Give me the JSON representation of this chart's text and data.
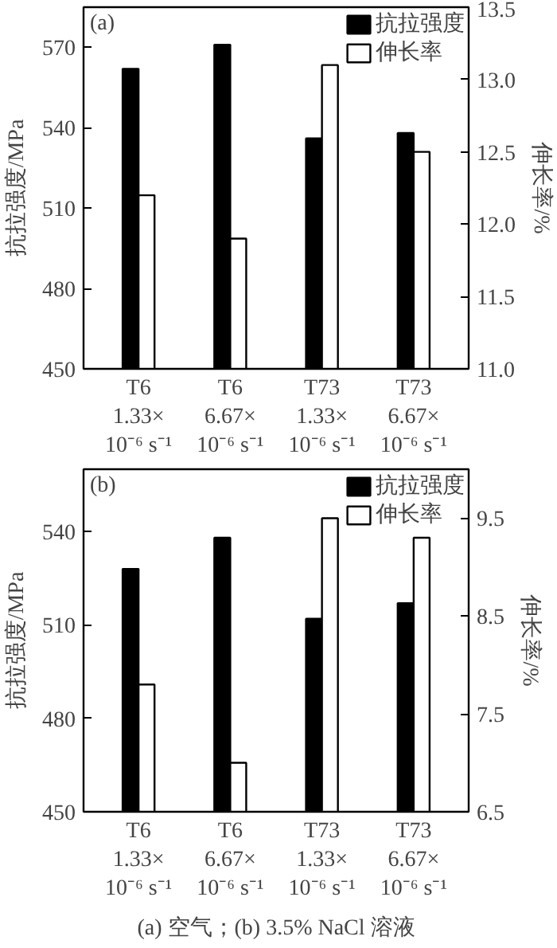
{
  "chart_data": [
    {
      "type": "bar",
      "categories": [
        "T6\n1.33×\n10⁻⁶ s⁻¹",
        "T6\n6.67×\n10⁻⁶ s⁻¹",
        "T73\n1.33×\n10⁻⁶ s⁻¹",
        "T73\n6.67×\n10⁻⁶ s⁻¹"
      ],
      "series": [
        {
          "name": "抗拉强度",
          "color": "#000000",
          "values": [
            562,
            571,
            536,
            538
          ]
        },
        {
          "name": "伸长率",
          "color": "#ffffff",
          "values": [
            12.2,
            11.9,
            13.1,
            12.5
          ],
          "axis": "y2"
        }
      ],
      "ylabel": "抗拉强度/MPa",
      "y2label": "伸长率/%",
      "ylim": [
        450,
        585
      ],
      "yticks": [
        450,
        480,
        510,
        540,
        570
      ],
      "y2lim": [
        11,
        13.5
      ],
      "y2ticks": [
        {
          "value": 11,
          "label": "11.0"
        },
        11.5,
        {
          "value": 12,
          "label": "12.0"
        },
        12.5,
        {
          "value": 13,
          "label": "13.0"
        },
        13.5
      ],
      "legend": "top right",
      "grid": false,
      "annotations": [
        "(a)"
      ]
    },
    {
      "type": "bar",
      "categories": [
        "T6\n1.33×\n10⁻⁶ s⁻¹",
        "T6\n6.67×\n10⁻⁶ s⁻¹",
        "T73\n1.33×\n10⁻⁶ s⁻¹",
        "T73\n6.67×\n10⁻⁶ s⁻¹"
      ],
      "series": [
        {
          "name": "抗拉强度",
          "color": "#000000",
          "values": [
            528,
            538,
            512,
            517
          ]
        },
        {
          "name": "伸长率",
          "color": "#ffffff",
          "values": [
            7.8,
            7.0,
            9.5,
            9.3
          ],
          "axis": "y2"
        }
      ],
      "ylabel": "抗拉强度/MPa",
      "y2label": "伸长率/%",
      "ylim": [
        450,
        560
      ],
      "yticks": [
        450,
        480,
        510,
        540
      ],
      "y2lim": [
        6.5,
        10
      ],
      "y2ticks": [
        6.5,
        7.5,
        8.5,
        9.5
      ],
      "legend": "top right",
      "grid": false,
      "annotations": [
        "(b)",
        "(a) 空气；(b) 3.5% NaCl 溶液"
      ]
    }
  ]
}
